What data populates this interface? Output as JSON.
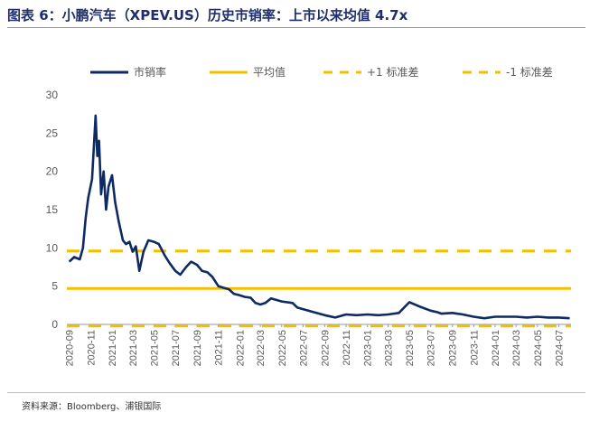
{
  "title": "图表 6：小鹏汽车（XPEV.US）历史市销率：上市以来均值 4.7x",
  "source": "资料来源：Bloomberg、浦银国际",
  "colors": {
    "series": "#0D2A63",
    "mean": "#F5BF00",
    "band": "#F5BF00",
    "axis": "#999999",
    "text": "#595959"
  },
  "chart_data": {
    "type": "line",
    "title": "",
    "xlabel": "",
    "ylabel": "",
    "ylim": [
      0,
      30
    ],
    "yticks": [
      0,
      5,
      10,
      15,
      20,
      25,
      30
    ],
    "grid": false,
    "legend_position": "top",
    "xticks": [
      "2020-09",
      "2020-11",
      "2021-01",
      "2021-03",
      "2021-05",
      "2021-07",
      "2021-09",
      "2021-11",
      "2022-01",
      "2022-03",
      "2022-05",
      "2022-07",
      "2022-09",
      "2022-11",
      "2023-01",
      "2023-03",
      "2023-05",
      "2023-07",
      "2023-09",
      "2023-11",
      "2024-01",
      "2024-03",
      "2024-05",
      "2024-07"
    ],
    "series": [
      {
        "name": "市销率",
        "x": [
          "2020-09-01",
          "2020-09-15",
          "2020-10-01",
          "2020-10-10",
          "2020-10-18",
          "2020-10-25",
          "2020-11-05",
          "2020-11-15",
          "2020-11-20",
          "2020-11-25",
          "2020-12-01",
          "2020-12-08",
          "2020-12-15",
          "2020-12-22",
          "2021-01-01",
          "2021-01-10",
          "2021-01-20",
          "2021-02-01",
          "2021-02-10",
          "2021-02-20",
          "2021-03-01",
          "2021-03-10",
          "2021-03-20",
          "2021-04-01",
          "2021-04-15",
          "2021-05-01",
          "2021-05-15",
          "2021-06-01",
          "2021-06-15",
          "2021-07-01",
          "2021-07-15",
          "2021-08-01",
          "2021-08-15",
          "2021-09-01",
          "2021-09-15",
          "2021-10-01",
          "2021-10-15",
          "2021-11-01",
          "2021-11-15",
          "2021-12-01",
          "2021-12-15",
          "2022-01-01",
          "2022-01-15",
          "2022-02-01",
          "2022-02-15",
          "2022-03-01",
          "2022-03-15",
          "2022-04-01",
          "2022-05-01",
          "2022-06-01",
          "2022-06-15",
          "2022-07-01",
          "2022-08-01",
          "2022-09-01",
          "2022-10-01",
          "2022-11-01",
          "2022-12-01",
          "2023-01-01",
          "2023-02-01",
          "2023-03-01",
          "2023-04-01",
          "2023-05-01",
          "2023-06-01",
          "2023-07-01",
          "2023-07-20",
          "2023-08-01",
          "2023-09-01",
          "2023-10-01",
          "2023-11-01",
          "2023-12-01",
          "2024-01-01",
          "2024-02-01",
          "2024-03-01",
          "2024-04-01",
          "2024-05-01",
          "2024-06-01",
          "2024-07-01",
          "2024-08-01"
        ],
        "values": [
          8.2,
          8.8,
          8.5,
          10.0,
          14.0,
          16.5,
          19.0,
          27.3,
          22.0,
          24.0,
          17.0,
          20.0,
          15.0,
          18.0,
          19.5,
          16.0,
          13.5,
          11.0,
          10.5,
          10.8,
          9.5,
          10.2,
          7.0,
          9.5,
          11.0,
          10.8,
          10.5,
          9.0,
          8.0,
          7.0,
          6.5,
          7.5,
          8.2,
          7.8,
          7.0,
          6.8,
          6.2,
          5.0,
          4.8,
          4.6,
          4.0,
          3.8,
          3.6,
          3.5,
          2.8,
          2.6,
          2.8,
          3.4,
          3.0,
          2.8,
          2.2,
          2.0,
          1.6,
          1.2,
          0.9,
          1.3,
          1.2,
          1.3,
          1.2,
          1.3,
          1.5,
          2.9,
          2.3,
          1.8,
          1.6,
          1.4,
          1.5,
          1.3,
          1.0,
          0.8,
          1.0,
          1.0,
          1.0,
          0.9,
          1.0,
          0.9,
          0.9,
          0.8
        ]
      },
      {
        "name": "平均值",
        "value": 4.7
      },
      {
        "name": "+1 标准差",
        "value": 9.6
      },
      {
        "name": "-1 标准差",
        "value": -0.2
      }
    ]
  }
}
